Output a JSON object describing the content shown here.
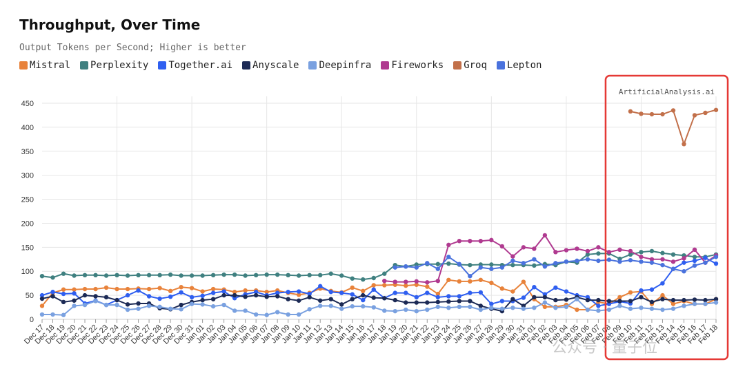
{
  "chart_data": {
    "type": "line",
    "title": "Throughput, Over Time",
    "subtitle": "Output Tokens per Second; Higher is better",
    "watermark": "ArtificialAnalysis.ai",
    "overlay_watermark": "公众号 · 量子位",
    "ylim": [
      0,
      450
    ],
    "yticks": [
      0,
      50,
      100,
      150,
      200,
      250,
      300,
      350,
      400,
      450
    ],
    "grid": true,
    "legend_position": "top-left",
    "highlight_box": {
      "from": "Feb 08",
      "to": "Feb 18",
      "color": "#e53935"
    },
    "x": [
      "Dec 17",
      "Dec 18",
      "Dec 19",
      "Dec 20",
      "Dec 21",
      "Dec 22",
      "Dec 23",
      "Dec 24",
      "Dec 25",
      "Dec 26",
      "Dec 27",
      "Dec 28",
      "Dec 29",
      "Dec 30",
      "Dec 31",
      "Jan 01",
      "Jan 02",
      "Jan 03",
      "Jan 04",
      "Jan 05",
      "Jan 06",
      "Jan 07",
      "Jan 08",
      "Jan 09",
      "Jan 10",
      "Jan 11",
      "Jan 12",
      "Jan 13",
      "Jan 14",
      "Jan 15",
      "Jan 16",
      "Jan 17",
      "Jan 18",
      "Jan 19",
      "Jan 20",
      "Jan 21",
      "Jan 22",
      "Jan 23",
      "Jan 24",
      "Jan 25",
      "Jan 26",
      "Jan 27",
      "Jan 28",
      "Jan 29",
      "Jan 30",
      "Jan 31",
      "Feb 01",
      "Feb 02",
      "Feb 03",
      "Feb 04",
      "Feb 05",
      "Feb 06",
      "Feb 07",
      "Feb 08",
      "Feb 09",
      "Feb 10",
      "Feb 11",
      "Feb 12",
      "Feb 13",
      "Feb 14",
      "Feb 15",
      "Feb 16",
      "Feb 17",
      "Feb 18"
    ],
    "series": [
      {
        "name": "Mistral",
        "color": "#e8823a",
        "values": [
          28,
          55,
          62,
          62,
          63,
          63,
          66,
          63,
          63,
          64,
          63,
          65,
          59,
          67,
          65,
          58,
          63,
          62,
          57,
          60,
          60,
          57,
          60,
          55,
          51,
          55,
          64,
          59,
          56,
          66,
          59,
          71,
          71,
          72,
          70,
          72,
          68,
          53,
          82,
          79,
          79,
          82,
          76,
          64,
          58,
          78,
          42,
          26,
          26,
          30,
          20,
          20,
          36,
          32,
          46,
          56,
          58,
          32,
          50,
          32,
          38,
          32,
          32,
          42
        ]
      },
      {
        "name": "Perplexity",
        "color": "#3f8080",
        "values": [
          90,
          87,
          95,
          91,
          92,
          92,
          91,
          92,
          91,
          92,
          92,
          92,
          93,
          91,
          91,
          91,
          92,
          93,
          93,
          91,
          92,
          93,
          93,
          92,
          91,
          92,
          92,
          95,
          91,
          85,
          83,
          86,
          95,
          113,
          110,
          114,
          115,
          115,
          116,
          114,
          113,
          114,
          114,
          113,
          113,
          113,
          112,
          115,
          113,
          120,
          118,
          135,
          137,
          137,
          126,
          135,
          140,
          142,
          138,
          135,
          133,
          130,
          130,
          135
        ]
      },
      {
        "name": "Together.ai",
        "color": "#2f5ff0",
        "values": [
          50,
          57,
          53,
          54,
          33,
          39,
          30,
          40,
          50,
          60,
          48,
          43,
          47,
          56,
          46,
          49,
          55,
          58,
          44,
          52,
          57,
          50,
          55,
          57,
          58,
          53,
          69,
          57,
          55,
          52,
          40,
          62,
          44,
          55,
          55,
          46,
          55,
          46,
          48,
          48,
          55,
          56,
          32,
          38,
          38,
          45,
          67,
          52,
          66,
          58,
          50,
          46,
          28,
          32,
          37,
          33,
          60,
          62,
          75,
          105,
          118,
          122,
          128,
          116
        ]
      },
      {
        "name": "Anyscale",
        "color": "#1c2a55",
        "values": [
          43,
          48,
          36,
          39,
          50,
          48,
          46,
          40,
          31,
          33,
          33,
          23,
          21,
          30,
          36,
          40,
          42,
          50,
          50,
          47,
          50,
          47,
          48,
          42,
          39,
          46,
          39,
          42,
          31,
          42,
          50,
          45,
          44,
          40,
          35,
          35,
          35,
          36,
          37,
          38,
          38,
          28,
          22,
          17,
          42,
          28,
          46,
          46,
          40,
          41,
          46,
          40,
          40,
          38,
          38,
          38,
          46,
          36,
          42,
          40,
          40,
          41,
          40,
          42
        ]
      },
      {
        "name": "Deepinfra",
        "color": "#7aa1e0",
        "values": [
          10,
          10,
          9,
          28,
          30,
          38,
          30,
          30,
          20,
          22,
          28,
          26,
          22,
          21,
          32,
          31,
          27,
          30,
          18,
          18,
          10,
          9,
          15,
          10,
          10,
          21,
          28,
          28,
          22,
          27,
          27,
          25,
          18,
          17,
          20,
          17,
          20,
          26,
          24,
          26,
          26,
          20,
          24,
          22,
          24,
          22,
          24,
          35,
          24,
          26,
          42,
          20,
          18,
          20,
          28,
          22,
          24,
          22,
          20,
          22,
          28,
          32,
          32,
          35
        ]
      },
      {
        "name": "Fireworks",
        "color": "#b03a90",
        "values": [
          null,
          null,
          null,
          null,
          null,
          null,
          null,
          null,
          null,
          null,
          null,
          null,
          null,
          null,
          null,
          null,
          null,
          null,
          null,
          null,
          null,
          null,
          null,
          null,
          null,
          null,
          null,
          null,
          null,
          null,
          null,
          null,
          80,
          78,
          78,
          79,
          77,
          80,
          155,
          163,
          163,
          163,
          165,
          152,
          131,
          150,
          147,
          175,
          140,
          144,
          147,
          142,
          150,
          140,
          145,
          142,
          130,
          125,
          125,
          120,
          127,
          145,
          118,
          133
        ]
      },
      {
        "name": "Groq",
        "color": "#c2704a",
        "values": [
          null,
          null,
          null,
          null,
          null,
          null,
          null,
          null,
          null,
          null,
          null,
          null,
          null,
          null,
          null,
          null,
          null,
          null,
          null,
          null,
          null,
          null,
          null,
          null,
          null,
          null,
          null,
          null,
          null,
          null,
          null,
          null,
          null,
          null,
          null,
          null,
          null,
          null,
          null,
          null,
          null,
          null,
          null,
          null,
          null,
          null,
          null,
          null,
          null,
          null,
          null,
          null,
          null,
          null,
          null,
          433,
          428,
          427,
          427,
          435,
          365,
          425,
          430,
          436
        ]
      },
      {
        "name": "Lepton",
        "color": "#4a72dd",
        "values": [
          null,
          null,
          null,
          null,
          null,
          null,
          null,
          null,
          null,
          null,
          null,
          null,
          null,
          null,
          null,
          null,
          null,
          null,
          null,
          null,
          null,
          null,
          null,
          null,
          null,
          null,
          null,
          null,
          null,
          null,
          null,
          null,
          null,
          108,
          110,
          108,
          117,
          105,
          130,
          115,
          90,
          108,
          105,
          108,
          122,
          117,
          125,
          110,
          117,
          120,
          122,
          125,
          122,
          124,
          120,
          123,
          120,
          118,
          113,
          105,
          100,
          112,
          118,
          130
        ]
      }
    ]
  }
}
